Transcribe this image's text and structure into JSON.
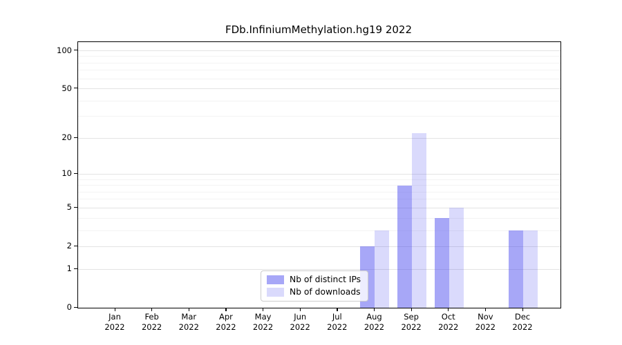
{
  "chart_data": {
    "type": "bar",
    "title": "FDb.InfiniumMethylation.hg19 2022",
    "categories": [
      "Jan 2022",
      "Feb 2022",
      "Mar 2022",
      "Apr 2022",
      "May 2022",
      "Jun 2022",
      "Jul 2022",
      "Aug 2022",
      "Sep 2022",
      "Oct 2022",
      "Nov 2022",
      "Dec 2022"
    ],
    "series": [
      {
        "name": "Nb of distinct IPs",
        "color": "#4444EE78",
        "values": [
          0,
          0,
          0,
          0,
          0,
          0,
          0,
          2,
          8,
          4,
          0,
          3
        ]
      },
      {
        "name": "Nb of downloads",
        "color": "#4444EE33",
        "values": [
          0,
          0,
          0,
          0,
          0,
          0,
          0,
          3,
          22,
          5,
          0,
          3
        ]
      }
    ],
    "xlabel": "",
    "ylabel": "",
    "yscale": "log1p",
    "ylim": [
      0,
      117
    ],
    "yticks": [
      0,
      1,
      2,
      5,
      10,
      20,
      50,
      100
    ],
    "yticks_minor": [
      3,
      4,
      6,
      7,
      8,
      9,
      30,
      40,
      60,
      70,
      80,
      90
    ],
    "grid": "on",
    "legend_position": "lower-center",
    "colors": {
      "bar_distinct_ips": "#4444EE78",
      "bar_downloads": "#4444EE33",
      "grid_major": "#e3e3e3",
      "grid_minor": "#f3f3f3",
      "spine": "#000000",
      "text": "#000000",
      "legend_border": "#cccccc",
      "background": "#ffffff"
    }
  }
}
